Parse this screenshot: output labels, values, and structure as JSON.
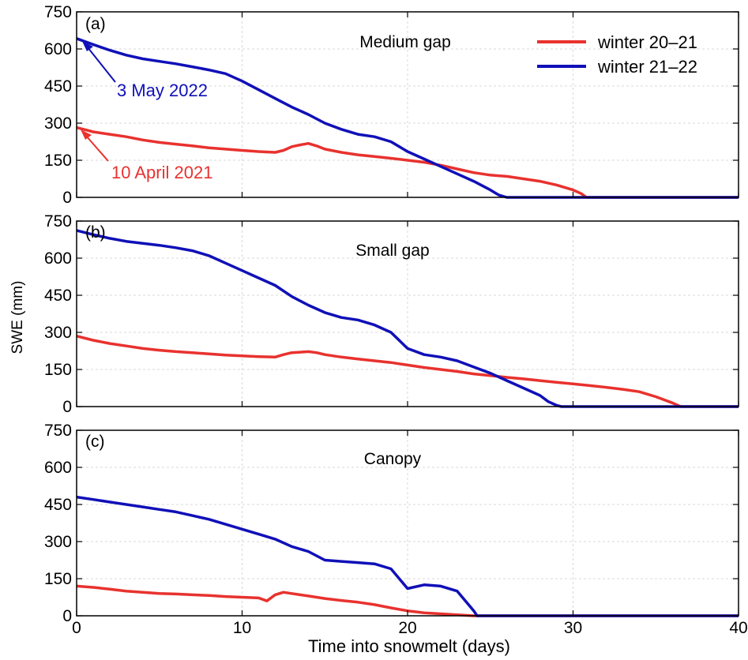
{
  "figure": {
    "xlabel": "Time into snowmelt (days)",
    "ylabel": "SWE  (mm)",
    "legend": [
      {
        "label": "winter 20–21",
        "color": "#e8322e"
      },
      {
        "label": "winter 21–22",
        "color": "#1010b8"
      }
    ]
  },
  "chart_data": [
    {
      "type": "line",
      "panel": "(a)",
      "title": "Medium gap",
      "xlim": [
        0,
        40
      ],
      "ylim": [
        0,
        750
      ],
      "xticks": [
        "0",
        "10",
        "20",
        "30",
        "40"
      ],
      "yticks": [
        "0",
        "150",
        "300",
        "450",
        "600",
        "750"
      ],
      "grid": true,
      "legend_position": "top-right",
      "series": [
        {
          "name": "winter 20–21",
          "color": "#e8322e",
          "x": [
            0,
            1,
            2,
            3,
            4,
            5,
            6,
            7,
            8,
            9,
            10,
            11,
            12,
            12.5,
            13,
            13.5,
            14,
            14.5,
            15,
            16,
            17,
            18,
            19,
            20,
            21,
            22,
            23,
            24,
            25,
            26,
            27,
            28,
            29,
            30,
            30.5,
            30.8,
            35,
            40
          ],
          "y": [
            282,
            265,
            255,
            245,
            232,
            222,
            215,
            208,
            200,
            195,
            190,
            185,
            182,
            190,
            205,
            212,
            218,
            208,
            195,
            182,
            172,
            165,
            158,
            150,
            142,
            130,
            115,
            100,
            90,
            85,
            75,
            65,
            50,
            30,
            15,
            0,
            0,
            0
          ]
        },
        {
          "name": "winter 21–22",
          "color": "#1010b8",
          "x": [
            0,
            1,
            2,
            3,
            4,
            5,
            6,
            7,
            8,
            9,
            10,
            11,
            12,
            13,
            14,
            15,
            16,
            17,
            18,
            19,
            20,
            21,
            22,
            23,
            24,
            25,
            25.5,
            26,
            30,
            35,
            40
          ],
          "y": [
            642,
            618,
            595,
            575,
            560,
            550,
            540,
            528,
            515,
            500,
            470,
            435,
            400,
            365,
            335,
            300,
            275,
            255,
            245,
            225,
            185,
            155,
            125,
            95,
            65,
            30,
            10,
            0,
            0,
            0,
            0
          ]
        }
      ],
      "annotations": [
        {
          "text": "3 May 2022",
          "color": "#1010b8",
          "points_to": {
            "x": 0.2,
            "y": 635
          }
        },
        {
          "text": "10 April 2021",
          "color": "#e8322e",
          "points_to": {
            "x": 0.2,
            "y": 280
          }
        }
      ]
    },
    {
      "type": "line",
      "panel": "(b)",
      "title": "Small gap",
      "xlim": [
        0,
        40
      ],
      "ylim": [
        0,
        750
      ],
      "xticks": [
        "0",
        "10",
        "20",
        "30",
        "40"
      ],
      "yticks": [
        "0",
        "150",
        "300",
        "450",
        "600",
        "750"
      ],
      "grid": true,
      "series": [
        {
          "name": "winter 20–21",
          "color": "#e8322e",
          "x": [
            0,
            1,
            2,
            3,
            4,
            5,
            6,
            7,
            8,
            9,
            10,
            11,
            12,
            12.5,
            13,
            13.5,
            14,
            14.5,
            15,
            16,
            17,
            18,
            19,
            20,
            21,
            22,
            23,
            24,
            25,
            26,
            27,
            28,
            29,
            30,
            31,
            32,
            33,
            34,
            35,
            36,
            36.5,
            37,
            40
          ],
          "y": [
            285,
            268,
            255,
            245,
            235,
            228,
            222,
            218,
            213,
            208,
            205,
            202,
            200,
            210,
            218,
            220,
            222,
            218,
            210,
            200,
            192,
            185,
            178,
            168,
            158,
            150,
            142,
            132,
            125,
            118,
            112,
            105,
            98,
            92,
            85,
            78,
            70,
            60,
            40,
            15,
            0,
            0,
            0
          ]
        },
        {
          "name": "winter 21–22",
          "color": "#1010b8",
          "x": [
            0,
            1,
            2,
            3,
            4,
            5,
            6,
            7,
            8,
            9,
            10,
            11,
            12,
            13,
            14,
            15,
            16,
            17,
            18,
            19,
            20,
            21,
            22,
            23,
            24,
            25,
            26,
            27,
            28,
            28.5,
            29,
            29.3,
            35,
            40
          ],
          "y": [
            712,
            695,
            680,
            668,
            660,
            652,
            642,
            630,
            610,
            580,
            550,
            520,
            490,
            445,
            410,
            380,
            360,
            350,
            330,
            300,
            235,
            210,
            200,
            185,
            160,
            135,
            105,
            75,
            45,
            20,
            5,
            0,
            0,
            0
          ]
        }
      ]
    },
    {
      "type": "line",
      "panel": "(c)",
      "title": "Canopy",
      "xlim": [
        0,
        40
      ],
      "ylim": [
        0,
        750
      ],
      "xticks": [
        "0",
        "10",
        "20",
        "30",
        "40"
      ],
      "yticks": [
        "0",
        "150",
        "300",
        "450",
        "600",
        "750"
      ],
      "grid": true,
      "series": [
        {
          "name": "winter 20–21",
          "color": "#e8322e",
          "x": [
            0,
            1,
            2,
            3,
            4,
            5,
            6,
            7,
            8,
            9,
            10,
            11,
            11.5,
            12,
            12.5,
            13,
            14,
            15,
            16,
            17,
            18,
            19,
            20,
            21,
            22,
            23,
            23.5,
            24,
            40
          ],
          "y": [
            120,
            115,
            108,
            100,
            95,
            90,
            88,
            85,
            82,
            78,
            75,
            72,
            60,
            85,
            95,
            90,
            80,
            70,
            62,
            55,
            45,
            32,
            20,
            12,
            8,
            4,
            2,
            0,
            0
          ]
        },
        {
          "name": "winter 21–22",
          "color": "#1010b8",
          "x": [
            0,
            1,
            2,
            3,
            4,
            5,
            6,
            7,
            8,
            9,
            10,
            11,
            12,
            13,
            14,
            15,
            16,
            17,
            18,
            19,
            20,
            21,
            22,
            23,
            23.5,
            24,
            24.2,
            40
          ],
          "y": [
            480,
            470,
            460,
            450,
            440,
            430,
            420,
            405,
            390,
            370,
            350,
            330,
            310,
            280,
            260,
            225,
            220,
            215,
            210,
            190,
            110,
            125,
            120,
            100,
            60,
            20,
            0,
            0
          ]
        }
      ]
    }
  ]
}
